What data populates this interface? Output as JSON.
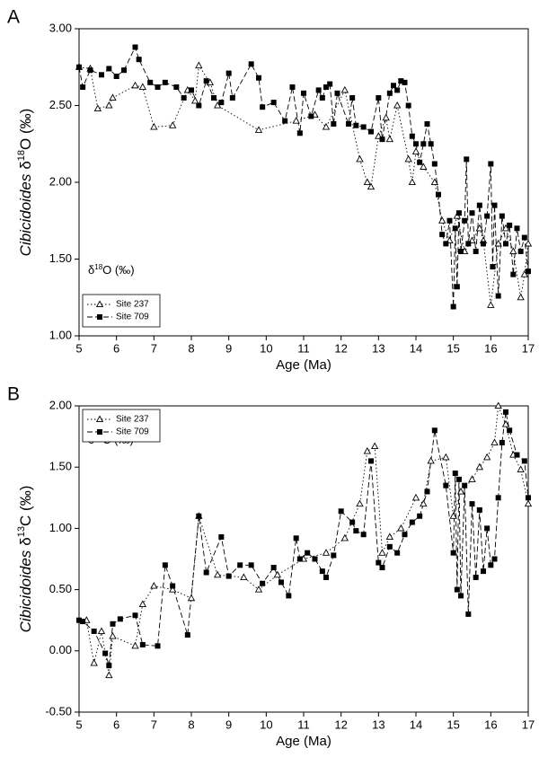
{
  "chart_data": [
    {
      "type": "line",
      "panel_label": "A",
      "xlabel": "Age (Ma)",
      "ylabel": [
        "Cibicidoides",
        "δ",
        "18",
        "O (‰)"
      ],
      "annotation": [
        "δ",
        "18",
        "O (‰)"
      ],
      "xlim": [
        5,
        17
      ],
      "xticks": [
        5,
        6,
        7,
        8,
        9,
        10,
        11,
        12,
        13,
        14,
        15,
        16,
        17
      ],
      "ylim": [
        1,
        3
      ],
      "yticks": [
        {
          "value": 1,
          "label": "1.00"
        },
        {
          "value": 1.5,
          "label": "1.50"
        },
        {
          "value": 2,
          "label": "2.00"
        },
        {
          "value": 2.5,
          "label": "2.50"
        },
        {
          "value": 3,
          "label": "3.00"
        }
      ],
      "legend": "lower left",
      "series": [
        {
          "name": "Site 237",
          "color": "#000000",
          "marker": "triangle",
          "dash": "dotted",
          "x": [
            5.0,
            5.3,
            5.5,
            5.8,
            5.9,
            6.5,
            6.7,
            7.0,
            7.5,
            7.9,
            8.1,
            8.2,
            8.5,
            8.7,
            9.8,
            10.8,
            11.3,
            11.6,
            12.1,
            12.5,
            12.7,
            12.8,
            13.0,
            13.2,
            13.3,
            13.5,
            13.8,
            13.9,
            14.0,
            14.2,
            14.5,
            14.7,
            14.9,
            15.1,
            15.3,
            15.5,
            15.7,
            15.8,
            16.0,
            16.2,
            16.4,
            16.6,
            16.8,
            16.9,
            17.0
          ],
          "values": [
            2.75,
            2.74,
            2.48,
            2.5,
            2.55,
            2.63,
            2.62,
            2.36,
            2.37,
            2.6,
            2.53,
            2.76,
            2.65,
            2.5,
            2.34,
            2.4,
            2.44,
            2.36,
            2.6,
            2.15,
            2.0,
            1.97,
            2.3,
            2.42,
            2.28,
            2.5,
            2.15,
            2.0,
            2.2,
            2.1,
            2.0,
            1.75,
            1.62,
            1.78,
            1.55,
            1.62,
            1.7,
            1.62,
            1.2,
            1.6,
            1.7,
            1.55,
            1.25,
            1.4,
            1.6
          ]
        },
        {
          "name": "Site 709",
          "color": "#000000",
          "marker": "square",
          "dash": "dashed",
          "x": [
            5.0,
            5.1,
            5.3,
            5.6,
            5.8,
            6.0,
            6.2,
            6.5,
            6.6,
            6.9,
            7.1,
            7.3,
            7.6,
            7.8,
            8.0,
            8.2,
            8.4,
            8.6,
            8.8,
            9.0,
            9.1,
            9.6,
            9.8,
            9.9,
            10.2,
            10.5,
            10.7,
            10.9,
            11.0,
            11.2,
            11.4,
            11.5,
            11.6,
            11.7,
            11.8,
            11.9,
            12.2,
            12.3,
            12.4,
            12.6,
            12.8,
            13.0,
            13.1,
            13.3,
            13.4,
            13.5,
            13.6,
            13.7,
            13.8,
            13.9,
            14.0,
            14.1,
            14.2,
            14.3,
            14.4,
            14.5,
            14.6,
            14.7,
            14.8,
            14.9,
            15.0,
            15.05,
            15.1,
            15.15,
            15.2,
            15.3,
            15.35,
            15.4,
            15.5,
            15.6,
            15.7,
            15.8,
            15.9,
            16.0,
            16.05,
            16.1,
            16.2,
            16.3,
            16.4,
            16.5,
            16.6,
            16.7,
            16.8,
            16.9,
            17.0
          ],
          "values": [
            2.75,
            2.62,
            2.73,
            2.7,
            2.74,
            2.69,
            2.73,
            2.88,
            2.8,
            2.65,
            2.62,
            2.65,
            2.62,
            2.55,
            2.6,
            2.5,
            2.66,
            2.55,
            2.52,
            2.71,
            2.55,
            2.77,
            2.68,
            2.49,
            2.52,
            2.4,
            2.62,
            2.32,
            2.58,
            2.43,
            2.6,
            2.55,
            2.62,
            2.64,
            2.38,
            2.58,
            2.38,
            2.55,
            2.37,
            2.36,
            2.33,
            2.55,
            2.28,
            2.58,
            2.63,
            2.6,
            2.66,
            2.65,
            2.5,
            2.3,
            2.25,
            2.13,
            2.25,
            2.38,
            2.25,
            2.12,
            1.92,
            1.66,
            1.6,
            1.75,
            1.19,
            1.7,
            1.32,
            1.8,
            1.55,
            1.75,
            2.15,
            1.6,
            1.8,
            1.55,
            1.85,
            1.6,
            1.78,
            2.12,
            1.45,
            1.85,
            1.26,
            1.78,
            1.6,
            1.72,
            1.4,
            1.7,
            1.55,
            1.64,
            1.42
          ]
        }
      ]
    },
    {
      "type": "line",
      "panel_label": "B",
      "xlabel": "Age (Ma)",
      "ylabel": [
        "Cibicidoides",
        "δ",
        "13",
        "C (‰)"
      ],
      "annotation": [
        "δ",
        "13",
        "C (‰)"
      ],
      "xlim": [
        5,
        17
      ],
      "xticks": [
        5,
        6,
        7,
        8,
        9,
        10,
        11,
        12,
        13,
        14,
        15,
        16,
        17
      ],
      "ylim": [
        -0.5,
        2
      ],
      "yticks": [
        {
          "value": -0.5,
          "label": "-0.50"
        },
        {
          "value": 0,
          "label": "0.00"
        },
        {
          "value": 0.5,
          "label": "0.50"
        },
        {
          "value": 1,
          "label": "1.00"
        },
        {
          "value": 1.5,
          "label": "1.50"
        },
        {
          "value": 2,
          "label": "2.00"
        }
      ],
      "legend": "upper left",
      "series": [
        {
          "name": "Site 237",
          "color": "#000000",
          "marker": "triangle",
          "dash": "dotted",
          "x": [
            5.2,
            5.4,
            5.6,
            5.8,
            5.9,
            6.5,
            6.7,
            7.0,
            7.5,
            8.0,
            8.2,
            8.7,
            9.4,
            9.8,
            10.3,
            11.0,
            11.6,
            12.1,
            12.5,
            12.7,
            12.9,
            13.1,
            13.3,
            13.6,
            14.0,
            14.2,
            14.4,
            14.8,
            15.0,
            15.2,
            15.5,
            15.7,
            15.9,
            16.1,
            16.2,
            16.4,
            16.6,
            16.8,
            17.0
          ],
          "values": [
            0.25,
            -0.1,
            0.16,
            -0.2,
            0.12,
            0.04,
            0.38,
            0.53,
            0.5,
            0.43,
            1.1,
            0.62,
            0.6,
            0.5,
            0.62,
            0.75,
            0.8,
            0.92,
            1.2,
            1.63,
            1.67,
            0.8,
            0.93,
            1.0,
            1.25,
            1.2,
            1.55,
            1.58,
            1.1,
            1.3,
            1.4,
            1.5,
            1.58,
            1.7,
            2.0,
            1.85,
            1.6,
            1.48,
            1.2
          ]
        },
        {
          "name": "Site 709",
          "color": "#000000",
          "marker": "square",
          "dash": "dashed",
          "x": [
            5.0,
            5.1,
            5.4,
            5.7,
            5.8,
            5.9,
            6.1,
            6.5,
            6.7,
            7.1,
            7.3,
            7.5,
            7.9,
            8.2,
            8.4,
            8.8,
            9.0,
            9.3,
            9.6,
            9.9,
            10.2,
            10.4,
            10.6,
            10.8,
            10.9,
            11.1,
            11.3,
            11.5,
            11.6,
            11.8,
            12.0,
            12.3,
            12.4,
            12.6,
            12.8,
            13.0,
            13.1,
            13.3,
            13.5,
            13.7,
            13.9,
            14.1,
            14.3,
            14.5,
            14.8,
            15.0,
            15.05,
            15.1,
            15.15,
            15.2,
            15.3,
            15.4,
            15.5,
            15.6,
            15.7,
            15.8,
            15.9,
            16.0,
            16.1,
            16.2,
            16.3,
            16.4,
            16.5,
            16.7,
            16.9,
            17.0
          ],
          "values": [
            0.25,
            0.24,
            0.16,
            -0.02,
            -0.12,
            0.22,
            0.26,
            0.29,
            0.05,
            0.04,
            0.7,
            0.53,
            0.13,
            1.1,
            0.64,
            0.93,
            0.61,
            0.7,
            0.7,
            0.55,
            0.68,
            0.56,
            0.45,
            0.92,
            0.75,
            0.8,
            0.75,
            0.65,
            0.6,
            0.78,
            1.14,
            1.05,
            0.98,
            0.95,
            1.55,
            0.72,
            0.68,
            0.85,
            0.8,
            0.95,
            1.05,
            1.1,
            1.3,
            1.8,
            1.35,
            0.8,
            1.45,
            0.5,
            1.4,
            0.45,
            1.35,
            0.3,
            1.2,
            0.6,
            1.15,
            0.65,
            1.0,
            0.7,
            0.75,
            1.25,
            1.7,
            1.95,
            1.8,
            1.6,
            1.55,
            1.25
          ]
        }
      ]
    }
  ]
}
